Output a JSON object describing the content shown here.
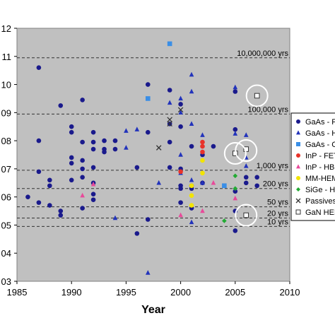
{
  "chart_data": {
    "type": "scatter",
    "xlabel": "Year",
    "ylabel": "",
    "xlim": [
      1985,
      2010
    ],
    "ylim": [
      3,
      12
    ],
    "x_ticks": [
      "1985",
      "1990",
      "1995",
      "2000",
      "2005",
      "2010"
    ],
    "y_ticks": [
      "03",
      "04",
      "05",
      "06",
      "07",
      "08",
      "09",
      "10",
      "11",
      "12"
    ],
    "grid": false,
    "legend_position": "right",
    "reference_lines": [
      {
        "label": "10,000,000 yrs",
        "y": 10.95
      },
      {
        "label": "100,000 yrs",
        "y": 8.95
      },
      {
        "label": "1,000 yrs",
        "y": 6.95
      },
      {
        "label": "200 yrs",
        "y": 6.3
      },
      {
        "label": "50 yrs",
        "y": 5.65
      },
      {
        "label": "20 yrs",
        "y": 5.25
      },
      {
        "label": "10 yrs",
        "y": 4.95
      }
    ],
    "series": [
      {
        "name": "GaAs - F",
        "color": "#1a1a8c",
        "marker": "circle",
        "points": [
          [
            1986,
            6
          ],
          [
            1987,
            10.6
          ],
          [
            1987,
            8
          ],
          [
            1987,
            6.9
          ],
          [
            1987,
            5.8
          ],
          [
            1988,
            6.6
          ],
          [
            1988,
            6.4
          ],
          [
            1988,
            5.7
          ],
          [
            1989,
            9.25
          ],
          [
            1989,
            5.5
          ],
          [
            1989,
            5.35
          ],
          [
            1990,
            8.5
          ],
          [
            1990,
            8.3
          ],
          [
            1990,
            7.4
          ],
          [
            1990,
            7.2
          ],
          [
            1990,
            6.6
          ],
          [
            1991,
            9.45
          ],
          [
            1991,
            7.95
          ],
          [
            1991,
            7.3
          ],
          [
            1991,
            7.0
          ],
          [
            1991,
            6.7
          ],
          [
            1991,
            5.6
          ],
          [
            1992,
            8.3
          ],
          [
            1992,
            7.95
          ],
          [
            1992,
            7.7
          ],
          [
            1992,
            7.05
          ],
          [
            1992,
            6.5
          ],
          [
            1992,
            6.1
          ],
          [
            1992,
            5.9
          ],
          [
            1993,
            8.0
          ],
          [
            1993,
            7.7
          ],
          [
            1993,
            7.6
          ],
          [
            1994,
            8.0
          ],
          [
            1994,
            7.7
          ],
          [
            1996,
            7.05
          ],
          [
            1996,
            4.7
          ],
          [
            1997,
            10.0
          ],
          [
            1997,
            8.3
          ],
          [
            1997,
            5.2
          ],
          [
            1999,
            9.8
          ],
          [
            1999,
            8.6
          ],
          [
            1999,
            7.95
          ],
          [
            1999,
            7.05
          ],
          [
            2000,
            9.3
          ],
          [
            2000,
            8.5
          ],
          [
            2000,
            7.0
          ],
          [
            2000,
            6.4
          ],
          [
            2000,
            6.3
          ],
          [
            2000,
            5.8
          ],
          [
            2001,
            7.8
          ],
          [
            2001,
            6.4
          ],
          [
            2001,
            6.3
          ],
          [
            2001,
            5.6
          ],
          [
            2002,
            7.5
          ],
          [
            2002,
            6.5
          ],
          [
            2003,
            7.8
          ],
          [
            2005,
            9.75
          ],
          [
            2005,
            8.4
          ],
          [
            2005,
            6.2
          ],
          [
            2005,
            5.5
          ],
          [
            2005,
            4.8
          ],
          [
            2006,
            6.7
          ],
          [
            2006,
            6.5
          ],
          [
            2007,
            6.7
          ],
          [
            2007,
            6.4
          ]
        ]
      },
      {
        "name": "GaAs - H",
        "color": "#2233bb",
        "marker": "triangle",
        "points": [
          [
            1994,
            5.25
          ],
          [
            1995,
            8.35
          ],
          [
            1995,
            7.75
          ],
          [
            1996,
            8.4
          ],
          [
            1997,
            3.3
          ],
          [
            1998,
            6.5
          ],
          [
            1999,
            9.35
          ],
          [
            2000,
            9.5
          ],
          [
            2000,
            9.0
          ],
          [
            2000,
            7.5
          ],
          [
            2000,
            6.85
          ],
          [
            2001,
            10.35
          ],
          [
            2001,
            9.75
          ],
          [
            2001,
            8.6
          ],
          [
            2001,
            6.6
          ],
          [
            2001,
            5.1
          ],
          [
            2002,
            8.2
          ],
          [
            2002,
            6.5
          ],
          [
            2005,
            9.9
          ],
          [
            2005,
            8.25
          ],
          [
            2006,
            8.2
          ],
          [
            2006,
            7.4
          ],
          [
            2006,
            7.1
          ]
        ]
      },
      {
        "name": "GaAs - C",
        "color": "#3a8ee6",
        "marker": "square",
        "points": [
          [
            1997,
            9.5
          ],
          [
            1999,
            11.45
          ],
          [
            2004,
            6.4
          ]
        ]
      },
      {
        "name": "InP - FET",
        "color": "#e8332a",
        "marker": "circle",
        "points": [
          [
            2000,
            6.9
          ],
          [
            2002,
            7.95
          ],
          [
            2002,
            7.8
          ],
          [
            2002,
            7.6
          ]
        ]
      },
      {
        "name": "InP - HB",
        "color": "#e84a9a",
        "marker": "triangle",
        "points": [
          [
            1991,
            6.05
          ],
          [
            1992,
            6.45
          ],
          [
            2000,
            5.35
          ],
          [
            2002,
            5.5
          ],
          [
            2003,
            6.5
          ],
          [
            2005,
            5.95
          ]
        ]
      },
      {
        "name": "MM-HEM",
        "color": "#f2e400",
        "marker": "circle",
        "points": [
          [
            2001,
            6.4
          ],
          [
            2001,
            6.05
          ],
          [
            2001,
            5.7
          ],
          [
            2002,
            7.3
          ],
          [
            2002,
            6.85
          ]
        ]
      },
      {
        "name": "SiGe - H",
        "color": "#22aa33",
        "marker": "diamond",
        "points": [
          [
            2004,
            5.15
          ],
          [
            2005,
            6.75
          ],
          [
            2005,
            6.3
          ]
        ]
      },
      {
        "name": "Passives",
        "color": "#333333",
        "marker": "x",
        "points": [
          [
            1998,
            7.75
          ],
          [
            1999,
            8.75
          ],
          [
            1999,
            8.6
          ],
          [
            2000,
            9.1
          ]
        ]
      },
      {
        "name": "GaN HEM",
        "color": "#888888",
        "marker": "open-square",
        "points": [
          [
            2005,
            7.55
          ],
          [
            2006,
            7.7
          ],
          [
            2006,
            5.35
          ],
          [
            2007,
            9.6
          ]
        ]
      }
    ],
    "highlight_circles": [
      [
        2005,
        7.55
      ],
      [
        2006,
        7.65
      ],
      [
        2006,
        5.35
      ],
      [
        2007,
        9.6
      ]
    ]
  }
}
